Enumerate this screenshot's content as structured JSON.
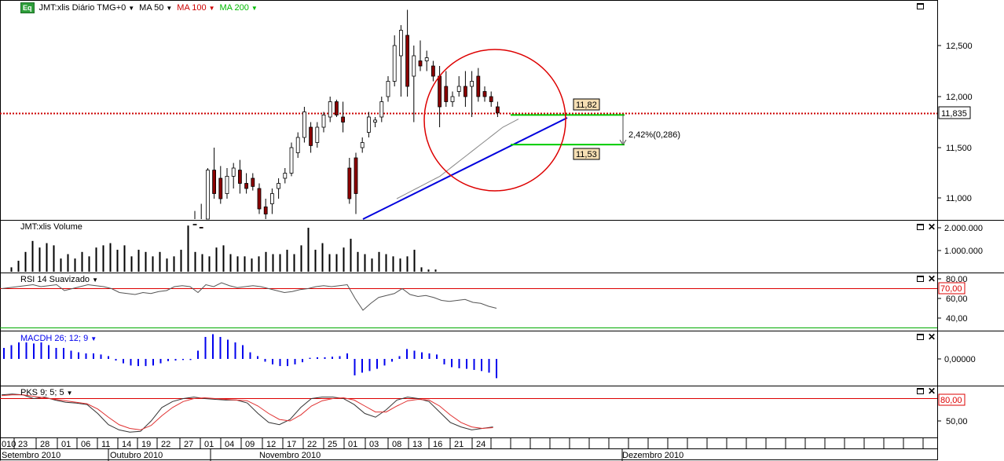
{
  "colors": {
    "up": "#ffffff",
    "down": "#8b0000",
    "wick": "#000000",
    "ma100": "#cc0000",
    "ma200": "#00bb00",
    "trend": "#0000dd",
    "macd": "#0000ee",
    "rsi_line": "#555555",
    "stoch_k": "#333333",
    "stoch_d": "#e03030",
    "circle": "#dd0000",
    "price_label_bg": "#f5deb3"
  },
  "price_panel": {
    "logo": "Eq",
    "symbol_title": "JMT:xlis Diário TMG+0",
    "legend": [
      {
        "label": "MA 50",
        "color": "#000000",
        "icon": "caret-down-icon"
      },
      {
        "label": "MA 100",
        "color": "#cc0000",
        "icon": "caret-down-icon"
      },
      {
        "label": "MA 200",
        "color": "#00bb00",
        "icon": "caret-down-icon"
      }
    ],
    "y_ticks": [
      "12,500",
      "12,000",
      "11,500",
      "11,000"
    ],
    "last_price": "11,835",
    "annotation_high": "11,82",
    "annotation_low": "11,53",
    "annotation_change": "2,42%(0,286)",
    "chart_data": {
      "type": "candlestick",
      "title": "JMT:xlis Diário TMG+0",
      "ylim": [
        10.8,
        12.9
      ],
      "candles": [
        {
          "o": 10.7,
          "h": 10.88,
          "l": 10.6,
          "c": 10.75
        },
        {
          "o": 10.72,
          "h": 10.95,
          "l": 10.6,
          "c": 10.7
        },
        {
          "o": 10.8,
          "h": 11.3,
          "l": 10.75,
          "c": 11.28
        },
        {
          "o": 11.28,
          "h": 11.5,
          "l": 11.0,
          "c": 11.05
        },
        {
          "o": 11.2,
          "h": 11.32,
          "l": 10.95,
          "c": 11.0
        },
        {
          "o": 11.05,
          "h": 11.3,
          "l": 11.0,
          "c": 11.22
        },
        {
          "o": 11.22,
          "h": 11.35,
          "l": 11.1,
          "c": 11.3
        },
        {
          "o": 11.28,
          "h": 11.38,
          "l": 11.05,
          "c": 11.15
        },
        {
          "o": 11.15,
          "h": 11.25,
          "l": 11.05,
          "c": 11.1
        },
        {
          "o": 11.2,
          "h": 11.25,
          "l": 11.08,
          "c": 11.12
        },
        {
          "o": 11.1,
          "h": 11.15,
          "l": 10.85,
          "c": 10.9
        },
        {
          "o": 10.92,
          "h": 11.0,
          "l": 10.8,
          "c": 10.85
        },
        {
          "o": 10.95,
          "h": 11.1,
          "l": 10.85,
          "c": 11.05
        },
        {
          "o": 11.1,
          "h": 11.2,
          "l": 11.0,
          "c": 11.15
        },
        {
          "o": 11.2,
          "h": 11.3,
          "l": 11.15,
          "c": 11.25
        },
        {
          "o": 11.25,
          "h": 11.55,
          "l": 11.22,
          "c": 11.5
        },
        {
          "o": 11.45,
          "h": 11.65,
          "l": 11.4,
          "c": 11.6
        },
        {
          "o": 11.6,
          "h": 11.9,
          "l": 11.55,
          "c": 11.85
        },
        {
          "o": 11.7,
          "h": 11.75,
          "l": 11.45,
          "c": 11.52
        },
        {
          "o": 11.55,
          "h": 11.75,
          "l": 11.5,
          "c": 11.7
        },
        {
          "o": 11.7,
          "h": 11.85,
          "l": 11.65,
          "c": 11.82
        },
        {
          "o": 11.8,
          "h": 12.0,
          "l": 11.75,
          "c": 11.95
        },
        {
          "o": 11.95,
          "h": 11.97,
          "l": 11.8,
          "c": 11.82
        },
        {
          "o": 11.8,
          "h": 11.95,
          "l": 11.65,
          "c": 11.75
        },
        {
          "o": 11.3,
          "h": 11.4,
          "l": 10.95,
          "c": 11.0
        },
        {
          "o": 11.4,
          "h": 11.45,
          "l": 10.85,
          "c": 11.05
        },
        {
          "o": 11.5,
          "h": 11.6,
          "l": 11.45,
          "c": 11.55
        },
        {
          "o": 11.65,
          "h": 11.85,
          "l": 11.6,
          "c": 11.8
        },
        {
          "o": 11.75,
          "h": 11.8,
          "l": 11.7,
          "c": 11.77
        },
        {
          "o": 11.8,
          "h": 12.0,
          "l": 11.75,
          "c": 11.95
        },
        {
          "o": 12.0,
          "h": 12.2,
          "l": 11.95,
          "c": 12.15
        },
        {
          "o": 12.15,
          "h": 12.6,
          "l": 12.1,
          "c": 12.5
        },
        {
          "o": 12.4,
          "h": 12.7,
          "l": 12.0,
          "c": 12.65
        },
        {
          "o": 12.6,
          "h": 12.85,
          "l": 12.0,
          "c": 12.1
        },
        {
          "o": 12.2,
          "h": 12.5,
          "l": 11.75,
          "c": 12.4
        },
        {
          "o": 12.35,
          "h": 12.55,
          "l": 12.25,
          "c": 12.3
        },
        {
          "o": 12.35,
          "h": 12.45,
          "l": 12.25,
          "c": 12.38
        },
        {
          "o": 12.3,
          "h": 12.35,
          "l": 12.15,
          "c": 12.2
        },
        {
          "o": 12.2,
          "h": 12.3,
          "l": 11.7,
          "c": 11.9
        },
        {
          "o": 12.1,
          "h": 12.25,
          "l": 11.9,
          "c": 11.95
        },
        {
          "o": 11.95,
          "h": 12.05,
          "l": 11.9,
          "c": 12.0
        },
        {
          "o": 12.05,
          "h": 12.2,
          "l": 12.0,
          "c": 12.1
        },
        {
          "o": 12.1,
          "h": 12.25,
          "l": 11.9,
          "c": 12.0
        },
        {
          "o": 12.1,
          "h": 12.25,
          "l": 11.8,
          "c": 12.15
        },
        {
          "o": 12.2,
          "h": 12.28,
          "l": 11.95,
          "c": 12.0
        },
        {
          "o": 12.05,
          "h": 12.1,
          "l": 11.95,
          "c": 12.0
        },
        {
          "o": 12.0,
          "h": 12.05,
          "l": 11.9,
          "c": 11.95
        },
        {
          "o": 11.9,
          "h": 11.95,
          "l": 11.8,
          "c": 11.84
        }
      ],
      "ma_line": [
        11.0,
        11.02,
        11.04,
        11.06,
        11.08,
        11.1,
        11.12,
        11.14,
        11.16,
        11.18,
        11.2,
        11.22,
        11.25,
        11.28,
        11.31,
        11.34,
        11.37,
        11.4,
        11.43,
        11.46,
        11.49,
        11.52,
        11.55,
        11.58,
        11.61,
        11.64,
        11.67,
        11.7,
        11.72,
        11.74,
        11.76,
        11.78
      ],
      "trend_line": [
        {
          "x": 18,
          "y": 10.8
        },
        {
          "x": 51.2,
          "y": 11.8
        }
      ],
      "resistance_level": 11.835,
      "level_high": 11.82,
      "level_low": 11.53
    }
  },
  "volume_panel": {
    "title": "JMT:xlis Volume",
    "y_ticks": [
      "2.000.000",
      "1.000.000"
    ],
    "chart_data": {
      "type": "bar",
      "ylim": [
        0,
        2200000
      ],
      "values": [
        200000,
        500000,
        900000,
        1400000,
        1100000,
        1300000,
        1200000,
        600000,
        800000,
        600000,
        900000,
        700000,
        1100000,
        1200000,
        1300000,
        1000000,
        1200000,
        700000,
        1000000,
        900000,
        700000,
        900000,
        600000,
        700000,
        1000000,
        2100000,
        900000,
        800000,
        700000,
        1100000,
        1200000,
        800000,
        700000,
        700000,
        600000,
        700000,
        900000,
        800000,
        800000,
        1000000,
        800000,
        1200000,
        2000000,
        1000000,
        1300000,
        800000,
        800000,
        1100000,
        1500000,
        900000,
        800000,
        600000,
        900000,
        800000,
        700000,
        600000,
        700000,
        1000000,
        200000,
        100000,
        100000
      ]
    }
  },
  "rsi_panel": {
    "title": "RSI 14 Suavizado",
    "y_ticks": [
      "80,00",
      "60,00",
      "40,00"
    ],
    "level_upper": "70,00",
    "chart_data": {
      "type": "line",
      "ylim": [
        32,
        82
      ],
      "upper": 70,
      "lower": 30,
      "values": [
        70,
        71,
        72,
        73,
        74,
        72,
        73,
        74,
        68,
        70,
        72,
        74,
        73,
        72,
        70,
        66,
        65,
        64,
        66,
        65,
        67,
        68,
        72,
        73,
        72,
        66,
        74,
        72,
        76,
        73,
        71,
        72,
        73,
        72,
        70,
        68,
        66,
        67,
        69,
        70,
        72,
        73,
        72,
        73,
        74,
        60,
        48,
        55,
        61,
        63,
        65,
        70,
        64,
        62,
        63,
        61,
        58,
        57,
        58,
        59,
        56,
        55,
        52,
        50
      ]
    }
  },
  "macd_panel": {
    "title": "MACDH 26; 12; 9",
    "y_ticks": [
      "0,00000"
    ],
    "chart_data": {
      "type": "bar",
      "ylim": [
        -0.06,
        0.06
      ],
      "values": [
        0.02,
        0.025,
        0.03,
        0.03,
        0.028,
        0.03,
        0.025,
        0.02,
        0.02,
        0.015,
        0.012,
        0.01,
        0.01,
        0.008,
        0.005,
        -0.003,
        -0.008,
        -0.012,
        -0.013,
        -0.013,
        -0.012,
        -0.008,
        -0.004,
        -0.003,
        -0.002,
        -0.002,
        0.015,
        0.04,
        0.045,
        0.04,
        0.035,
        0.03,
        0.025,
        0.012,
        0.005,
        -0.005,
        -0.01,
        -0.013,
        -0.013,
        -0.01,
        -0.006,
        0.002,
        0.003,
        0.003,
        0.004,
        0.005,
        0.01,
        -0.03,
        -0.025,
        -0.022,
        -0.018,
        -0.012,
        -0.005,
        0.005,
        0.018,
        0.015,
        0.012,
        0.01,
        0.008,
        -0.01,
        -0.015,
        -0.017,
        -0.018,
        -0.02,
        -0.022,
        -0.025,
        -0.035
      ]
    }
  },
  "stoch_panel": {
    "title": "PKS 9; 5; 5",
    "y_ticks": [
      "50,00"
    ],
    "level_upper": "80,00",
    "chart_data": {
      "type": "line",
      "ylim": [
        30,
        95
      ],
      "upper": 80,
      "series": [
        {
          "name": "K",
          "values": [
            85,
            86,
            85,
            80,
            82,
            78,
            75,
            74,
            72,
            60,
            45,
            38,
            35,
            36,
            50,
            68,
            76,
            80,
            82,
            80,
            79,
            78,
            78,
            74,
            60,
            48,
            45,
            52,
            68,
            80,
            82,
            82,
            80,
            72,
            60,
            55,
            65,
            78,
            82,
            80,
            76,
            62,
            48,
            42,
            38,
            40,
            42
          ]
        },
        {
          "name": "D",
          "values": [
            84,
            85,
            85,
            83,
            81,
            79,
            77,
            75,
            73,
            66,
            55,
            45,
            40,
            38,
            44,
            57,
            68,
            76,
            80,
            81,
            80,
            79,
            78,
            77,
            70,
            60,
            52,
            50,
            58,
            70,
            77,
            80,
            81,
            78,
            70,
            62,
            62,
            70,
            77,
            79,
            78,
            70,
            58,
            48,
            42,
            40,
            41
          ]
        }
      ]
    }
  },
  "x_axis": {
    "days": [
      "010",
      "23",
      "28",
      "01",
      "06",
      "11",
      "14",
      "19",
      "22",
      "27",
      "01",
      "04",
      "09",
      "12",
      "17",
      "22",
      "25",
      "01",
      "03",
      "08",
      "13",
      "16",
      "21",
      "24"
    ],
    "months": [
      "Setembro 2010",
      "Outubro 2010",
      "Novembro 2010",
      "Dezembro 2010"
    ]
  }
}
